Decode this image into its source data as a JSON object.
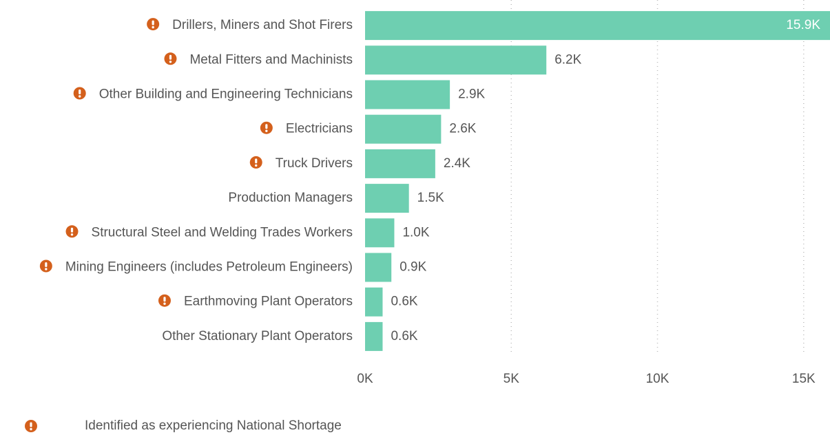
{
  "chart_data": {
    "type": "hbar",
    "categories": [
      "Drillers, Miners and Shot Firers",
      "Metal Fitters and Machinists",
      "Other Building and Engineering Technicians",
      "Electricians",
      "Truck Drivers",
      "Production Managers",
      "Structural Steel and Welding Trades Workers",
      "Mining Engineers (includes Petroleum Engineers)",
      "Earthmoving Plant Operators",
      "Other Stationary Plant Operators"
    ],
    "values": [
      15900,
      6200,
      2900,
      2600,
      2400,
      1500,
      1000,
      900,
      600,
      600
    ],
    "value_labels": [
      "15.9K",
      "6.2K",
      "2.9K",
      "2.6K",
      "2.4K",
      "1.5K",
      "1.0K",
      "0.9K",
      "0.6K",
      "0.6K"
    ],
    "shortage": [
      true,
      true,
      true,
      true,
      true,
      false,
      true,
      true,
      true,
      false
    ],
    "color": "#6ecfb1",
    "marker_color": "#d4601c",
    "xlim": [
      0,
      15900
    ],
    "xticks": [
      {
        "value": 0,
        "label": "0K"
      },
      {
        "value": 5000,
        "label": "5K"
      },
      {
        "value": 10000,
        "label": "10K"
      },
      {
        "value": 15000,
        "label": "15K"
      }
    ],
    "grid": true,
    "legend": {
      "label": "Identified as experiencing National Shortage",
      "position": "bottom-left"
    }
  }
}
